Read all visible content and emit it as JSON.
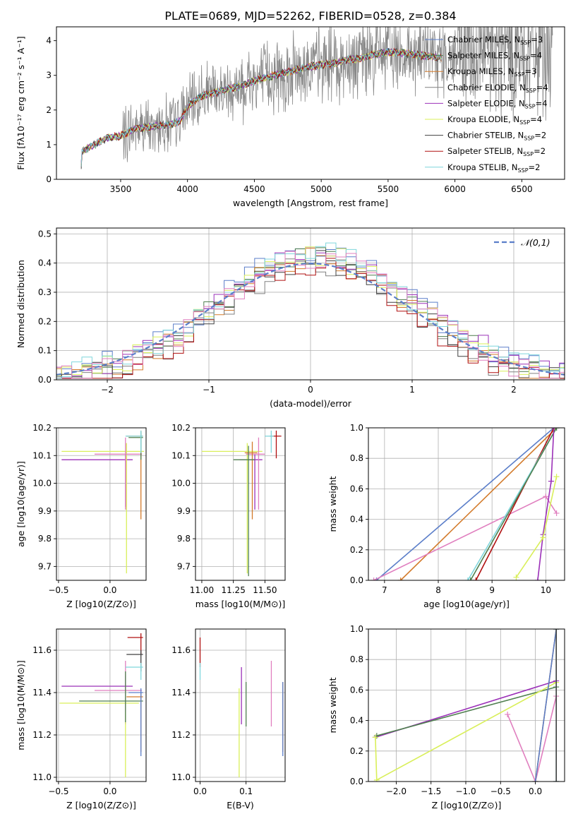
{
  "figure_title": "PLATE=0689, MJD=52262, FIBERID=0528, z=0.384",
  "colors": {
    "chabrier_miles": "#5b7ec9",
    "salpeter_miles": "#4f7f4f",
    "kroupa_miles": "#d37a2a",
    "chabrier_elodie": "#808080",
    "salpeter_elodie": "#9b30b8",
    "kroupa_elodie": "#d9ef5a",
    "chabrier_stelib": "#404040",
    "salpeter_stelib": "#b01010",
    "kroupa_stelib": "#7fd6dc",
    "pink": "#e07fbf",
    "gauss": "#5b7ec9"
  },
  "chart_data": [
    {
      "id": "spectrum",
      "type": "line",
      "title": "PLATE=0689, MJD=52262, FIBERID=0528, z=0.384",
      "xlabel": "wavelength [Angstrom, rest frame]",
      "ylabel": "Flux [fλ10⁻¹⁷ erg cm⁻² s⁻¹ A⁻¹]",
      "xlim": [
        3020,
        6820
      ],
      "ylim": [
        0,
        4.4
      ],
      "xticks": [
        3500,
        4000,
        4500,
        5000,
        5500,
        6000,
        6500
      ],
      "yticks": [
        0,
        1,
        2,
        3,
        4
      ],
      "grid": false,
      "legend_position": "right",
      "legend": [
        {
          "main": "Chabrier MILES, N",
          "sub": "SSP",
          "tail": "=3",
          "color": "#5b7ec9"
        },
        {
          "main": "Salpeter MILES, N",
          "sub": "SSP",
          "tail": "=4",
          "color": "#4f7f4f"
        },
        {
          "main": "Kroupa MILES, N",
          "sub": "SSP",
          "tail": "=3",
          "color": "#d37a2a"
        },
        {
          "main": "Chabrier ELODIE, N",
          "sub": "SSP",
          "tail": "=4",
          "color": "#808080"
        },
        {
          "main": "Salpeter ELODIE, N",
          "sub": "SSP",
          "tail": "=4",
          "color": "#9b30b8"
        },
        {
          "main": "Kroupa ELODIE, N",
          "sub": "SSP",
          "tail": "=4",
          "color": "#d9ef5a"
        },
        {
          "main": "Chabrier STELIB, N",
          "sub": "SSP",
          "tail": "=2",
          "color": "#404040"
        },
        {
          "main": "Salpeter STELIB, N",
          "sub": "SSP",
          "tail": "=2",
          "color": "#b01010"
        },
        {
          "main": "Kroupa STELIB, N",
          "sub": "SSP",
          "tail": "=2",
          "color": "#7fd6dc"
        }
      ],
      "continuum": [
        [
          3200,
          0.0
        ],
        [
          3210,
          0.8
        ],
        [
          3300,
          1.0
        ],
        [
          3400,
          1.2
        ],
        [
          3500,
          1.25
        ],
        [
          3600,
          1.45
        ],
        [
          3700,
          1.5
        ],
        [
          3800,
          1.55
        ],
        [
          3900,
          1.6
        ],
        [
          3950,
          1.7
        ],
        [
          4000,
          2.1
        ],
        [
          4100,
          2.4
        ],
        [
          4200,
          2.5
        ],
        [
          4300,
          2.6
        ],
        [
          4400,
          2.7
        ],
        [
          4500,
          2.85
        ],
        [
          4600,
          2.95
        ],
        [
          4700,
          3.05
        ],
        [
          4800,
          3.15
        ],
        [
          4900,
          3.25
        ],
        [
          5000,
          3.3
        ],
        [
          5100,
          3.35
        ],
        [
          5200,
          3.45
        ],
        [
          5300,
          3.5
        ],
        [
          5400,
          3.6
        ],
        [
          5500,
          3.68
        ],
        [
          5600,
          3.65
        ],
        [
          5700,
          3.6
        ],
        [
          5800,
          3.55
        ],
        [
          5900,
          3.5
        ]
      ],
      "noise_start": 3510,
      "noise_end": 6730
    },
    {
      "id": "residuals",
      "type": "histogram",
      "xlabel": "(data-model)/error",
      "ylabel": "Normed distribution",
      "xlim": [
        -2.5,
        2.5
      ],
      "ylim": [
        0,
        0.52
      ],
      "xticks": [
        -2,
        -1,
        0,
        1,
        2
      ],
      "xtick_labels": [
        "−2",
        "−1",
        "0",
        "1",
        "2"
      ],
      "yticks": [
        0.0,
        0.1,
        0.2,
        0.3,
        0.4,
        0.5
      ],
      "ytick_labels": [
        "0.0",
        "0.1",
        "0.2",
        "0.3",
        "0.4",
        "0.5"
      ],
      "grid": true,
      "legend_position": "top-right",
      "gauss_label": "𝒩(0,1)",
      "gauss": {
        "mu": 0,
        "sigma": 1
      }
    },
    {
      "id": "age_vs_Z",
      "type": "errorbar",
      "xlabel": "Z [log10(Z/Z⊙)]",
      "ylabel": "age  [log10(age/yr)]",
      "xlim": [
        -0.52,
        0.35
      ],
      "ylim": [
        9.65,
        10.2
      ],
      "xticks": [
        -0.5,
        0.0
      ],
      "xtick_labels": [
        "−0.5",
        "0.0"
      ],
      "yticks": [
        9.7,
        9.8,
        9.9,
        10.0,
        10.1,
        10.2
      ],
      "ytick_labels": [
        "9.7",
        "9.8",
        "9.9",
        "10.0",
        "10.1",
        "10.2"
      ],
      "grid": true,
      "points": [
        {
          "x": 0.15,
          "y": 10.085,
          "xerr": [
            0.62,
            0.07
          ],
          "yerr": [
            0.17,
            0.02
          ],
          "color": "#9b30b8"
        },
        {
          "x": 0.16,
          "y": 10.115,
          "xerr": [
            0.63,
            0.17
          ],
          "yerr": [
            0.44,
            0.03
          ],
          "color": "#d9ef5a"
        },
        {
          "x": 0.15,
          "y": 10.105,
          "xerr": [
            0.3,
            0.16
          ],
          "yerr": [
            0.2,
            0.06
          ],
          "color": "#e07fbf"
        },
        {
          "x": 0.3,
          "y": 10.17,
          "xerr": [
            0.14,
            0.02
          ],
          "yerr": [
            0.3,
            0.02
          ],
          "color": "#d37a2a"
        },
        {
          "x": 0.3,
          "y": 10.165,
          "xerr": [
            0.12,
            0.02
          ],
          "yerr": [
            0.08,
            0.02
          ],
          "color": "#4f7f4f"
        },
        {
          "x": 0.3,
          "y": 10.17,
          "xerr": [
            0.15,
            0.02
          ],
          "yerr": [
            0.06,
            0.02
          ],
          "color": "#7fd6dc"
        }
      ]
    },
    {
      "id": "age_vs_mass",
      "type": "errorbar",
      "xlabel": "mass [log10(M/M⊙)]",
      "ylabel": "",
      "xlim": [
        10.95,
        11.66
      ],
      "ylim": [
        9.65,
        10.2
      ],
      "xticks": [
        11.0,
        11.25,
        11.5
      ],
      "xtick_labels": [
        "11.00",
        "11.25",
        "11.50"
      ],
      "yticks": [
        9.7,
        9.8,
        9.9,
        10.0,
        10.1,
        10.2
      ],
      "ytick_labels": [
        "9.7",
        "9.8",
        "9.9",
        "10.0",
        "10.1",
        "10.2"
      ],
      "grid": true,
      "points": [
        {
          "x": 11.42,
          "y": 10.085,
          "xerr": [
            0.12,
            0.06
          ],
          "yerr": [
            0.18,
            0.02
          ],
          "color": "#9b30b8"
        },
        {
          "x": 11.36,
          "y": 10.115,
          "xerr": [
            0.36,
            0.12
          ],
          "yerr": [
            0.44,
            0.03
          ],
          "color": "#d9ef5a"
        },
        {
          "x": 11.45,
          "y": 10.105,
          "xerr": [
            0.1,
            0.05
          ],
          "yerr": [
            0.2,
            0.06
          ],
          "color": "#e07fbf"
        },
        {
          "x": 11.4,
          "y": 10.11,
          "xerr": [
            0.06,
            0.04
          ],
          "yerr": [
            0.24,
            0.04
          ],
          "color": "#d37a2a"
        },
        {
          "x": 11.37,
          "y": 10.085,
          "xerr": [
            0.12,
            0.05
          ],
          "yerr": [
            0.42,
            0.05
          ],
          "color": "#4f7f4f"
        },
        {
          "x": 11.59,
          "y": 10.17,
          "xerr": [
            0.05,
            0.04
          ],
          "yerr": [
            0.08,
            0.02
          ],
          "color": "#b01010"
        },
        {
          "x": 11.55,
          "y": 10.17,
          "xerr": [
            0.05,
            0.02
          ],
          "yerr": [
            0.06,
            0.02
          ],
          "color": "#7fd6dc"
        }
      ]
    },
    {
      "id": "massweight_vs_age",
      "type": "line",
      "xlabel": "age  [log10(age/yr)]",
      "ylabel": "mass weight",
      "xlim": [
        6.7,
        10.35
      ],
      "ylim": [
        0,
        1.0
      ],
      "xticks": [
        7,
        8,
        9,
        10
      ],
      "xtick_labels": [
        "7",
        "8",
        "9",
        "10"
      ],
      "yticks": [
        0.0,
        0.2,
        0.4,
        0.6,
        0.8,
        1.0
      ],
      "ytick_labels": [
        "0.0",
        "0.2",
        "0.4",
        "0.6",
        "0.8",
        "1.0"
      ],
      "grid": true,
      "series": [
        {
          "color": "#5b7ec9",
          "x": [
            6.85,
            10.15
          ],
          "y": [
            0.0,
            1.0
          ]
        },
        {
          "color": "#d37a2a",
          "x": [
            7.3,
            10.2
          ],
          "y": [
            0.0,
            1.0
          ]
        },
        {
          "color": "#e07fbf",
          "x": [
            6.8,
            10.0,
            10.2
          ],
          "y": [
            0.0,
            0.55,
            0.44
          ]
        },
        {
          "color": "#b01010",
          "x": [
            8.7,
            10.15
          ],
          "y": [
            0.0,
            1.0
          ]
        },
        {
          "color": "#7fd6dc",
          "x": [
            8.55,
            10.2
          ],
          "y": [
            0.0,
            1.0
          ]
        },
        {
          "color": "#4f7f4f",
          "x": [
            8.6,
            10.2
          ],
          "y": [
            0.0,
            1.0
          ]
        },
        {
          "color": "#9b30b8",
          "x": [
            9.85,
            9.95,
            10.1,
            10.15
          ],
          "y": [
            0.0,
            0.3,
            0.65,
            1.0
          ]
        },
        {
          "color": "#d9ef5a",
          "x": [
            9.45,
            9.95,
            10.2
          ],
          "y": [
            0.02,
            0.28,
            0.68
          ]
        }
      ]
    },
    {
      "id": "mass_vs_Z",
      "type": "errorbar",
      "xlabel": "Z [log10(Z/Z⊙)]",
      "ylabel": "mass [log10(M/M⊙)]",
      "xlim": [
        -0.52,
        0.35
      ],
      "ylim": [
        10.98,
        11.7
      ],
      "xticks": [
        -0.5,
        0.0
      ],
      "xtick_labels": [
        "−0.5",
        "0.0"
      ],
      "yticks": [
        11.0,
        11.2,
        11.4,
        11.6
      ],
      "ytick_labels": [
        "11.0",
        "11.2",
        "11.4",
        "11.6"
      ],
      "grid": true,
      "points": [
        {
          "x": 0.15,
          "y": 11.43,
          "xerr": [
            0.62,
            0.07
          ],
          "yerr": [
            0.18,
            0.05
          ],
          "color": "#9b30b8"
        },
        {
          "x": 0.15,
          "y": 11.35,
          "xerr": [
            0.64,
            0.13
          ],
          "yerr": [
            0.35,
            0.06
          ],
          "color": "#d9ef5a"
        },
        {
          "x": 0.15,
          "y": 11.41,
          "xerr": [
            0.3,
            0.16
          ],
          "yerr": [
            0.1,
            0.14
          ],
          "color": "#e07fbf"
        },
        {
          "x": 0.3,
          "y": 11.38,
          "xerr": [
            0.14,
            0.02
          ],
          "yerr": [
            0.26,
            0.02
          ],
          "color": "#d37a2a"
        },
        {
          "x": 0.15,
          "y": 11.36,
          "xerr": [
            0.45,
            0.17
          ],
          "yerr": [
            0.1,
            0.14
          ],
          "color": "#4f7f4f"
        },
        {
          "x": 0.3,
          "y": 11.66,
          "xerr": [
            0.13,
            0.02
          ],
          "yerr": [
            0.08,
            0.02
          ],
          "color": "#b01010"
        },
        {
          "x": 0.3,
          "y": 11.58,
          "xerr": [
            0.14,
            0.02
          ],
          "yerr": [
            0.08,
            0.02
          ],
          "color": "#404040"
        },
        {
          "x": 0.3,
          "y": 11.52,
          "xerr": [
            0.15,
            0.02
          ],
          "yerr": [
            0.06,
            0.02
          ],
          "color": "#7fd6dc"
        },
        {
          "x": 0.3,
          "y": 11.4,
          "xerr": [
            0.12,
            0.02
          ],
          "yerr": [
            0.3,
            0.02
          ],
          "color": "#5b7ec9"
        }
      ]
    },
    {
      "id": "mass_vs_ebv",
      "type": "errorbar",
      "xlabel": "E(B-V)",
      "ylabel": "",
      "xlim": [
        -0.01,
        0.185
      ],
      "ylim": [
        10.98,
        11.7
      ],
      "xticks": [
        0.0,
        0.1
      ],
      "xtick_labels": [
        "0.0",
        "0.1"
      ],
      "yticks": [
        11.0,
        11.2,
        11.4,
        11.6
      ],
      "ytick_labels": [
        "11.0",
        "11.2",
        "11.4",
        "11.6"
      ],
      "grid": true,
      "points": [
        {
          "x": 0.0,
          "y": 11.6,
          "xerr": [
            0,
            0
          ],
          "yerr": [
            0.08,
            0.06
          ],
          "color": "#b01010"
        },
        {
          "x": 0.0,
          "y": 11.5,
          "xerr": [
            0,
            0
          ],
          "yerr": [
            0.04,
            0.04
          ],
          "color": "#7fd6dc"
        },
        {
          "x": 0.085,
          "y": 11.35,
          "xerr": [
            0,
            0
          ],
          "yerr": [
            0.35,
            0.07
          ],
          "color": "#d9ef5a"
        },
        {
          "x": 0.09,
          "y": 11.43,
          "xerr": [
            0,
            0
          ],
          "yerr": [
            0.18,
            0.09
          ],
          "color": "#9b30b8"
        },
        {
          "x": 0.1,
          "y": 11.36,
          "xerr": [
            0,
            0
          ],
          "yerr": [
            0.12,
            0.09
          ],
          "color": "#4f7f4f"
        },
        {
          "x": 0.155,
          "y": 11.4,
          "xerr": [
            0,
            0
          ],
          "yerr": [
            0.16,
            0.15
          ],
          "color": "#e07fbf"
        },
        {
          "x": 0.18,
          "y": 11.4,
          "xerr": [
            0,
            0
          ],
          "yerr": [
            0.28,
            0.05
          ],
          "color": "#d37a2a"
        },
        {
          "x": 0.18,
          "y": 11.35,
          "xerr": [
            0,
            0
          ],
          "yerr": [
            0.25,
            0.1
          ],
          "color": "#5b7ec9"
        }
      ]
    },
    {
      "id": "massweight_vs_Z",
      "type": "line",
      "xlabel": "Z [log10(Z/Z⊙)]",
      "ylabel": "mass weight",
      "xlim": [
        -2.4,
        0.42
      ],
      "ylim": [
        0,
        1.0
      ],
      "xticks": [
        -2.0,
        -1.5,
        -1.0,
        -0.5,
        0.0
      ],
      "xtick_labels": [
        "−2.0",
        "−1.5",
        "−1.0",
        "−0.5",
        "0.0"
      ],
      "yticks": [
        0.0,
        0.2,
        0.4,
        0.6,
        0.8,
        1.0
      ],
      "ytick_labels": [
        "0.0",
        "0.2",
        "0.4",
        "0.6",
        "0.8",
        "1.0"
      ],
      "grid": true,
      "series": [
        {
          "color": "#9b30b8",
          "x": [
            -2.3,
            0.3
          ],
          "y": [
            0.29,
            0.66
          ]
        },
        {
          "color": "#4f7f4f",
          "x": [
            -2.28,
            0.3
          ],
          "y": [
            0.3,
            0.62
          ]
        },
        {
          "color": "#d9ef5a",
          "x": [
            -2.3,
            -2.28,
            0.3
          ],
          "y": [
            0.29,
            0.01,
            0.65
          ]
        },
        {
          "color": "#e07fbf",
          "x": [
            -0.4,
            0.0,
            0.3
          ],
          "y": [
            0.44,
            0.0,
            0.56
          ]
        },
        {
          "color": "#d37a2a",
          "x": [
            0.0,
            0.3
          ],
          "y": [
            0.0,
            1.0
          ]
        },
        {
          "color": "#5b7ec9",
          "x": [
            0.0,
            0.3
          ],
          "y": [
            0.0,
            1.0
          ]
        },
        {
          "color": "#7fd6dc",
          "x": [
            0.3,
            0.3
          ],
          "y": [
            0.0,
            1.0
          ]
        },
        {
          "color": "#404040",
          "x": [
            0.3,
            0.3
          ],
          "y": [
            0.0,
            1.0
          ]
        }
      ]
    }
  ]
}
